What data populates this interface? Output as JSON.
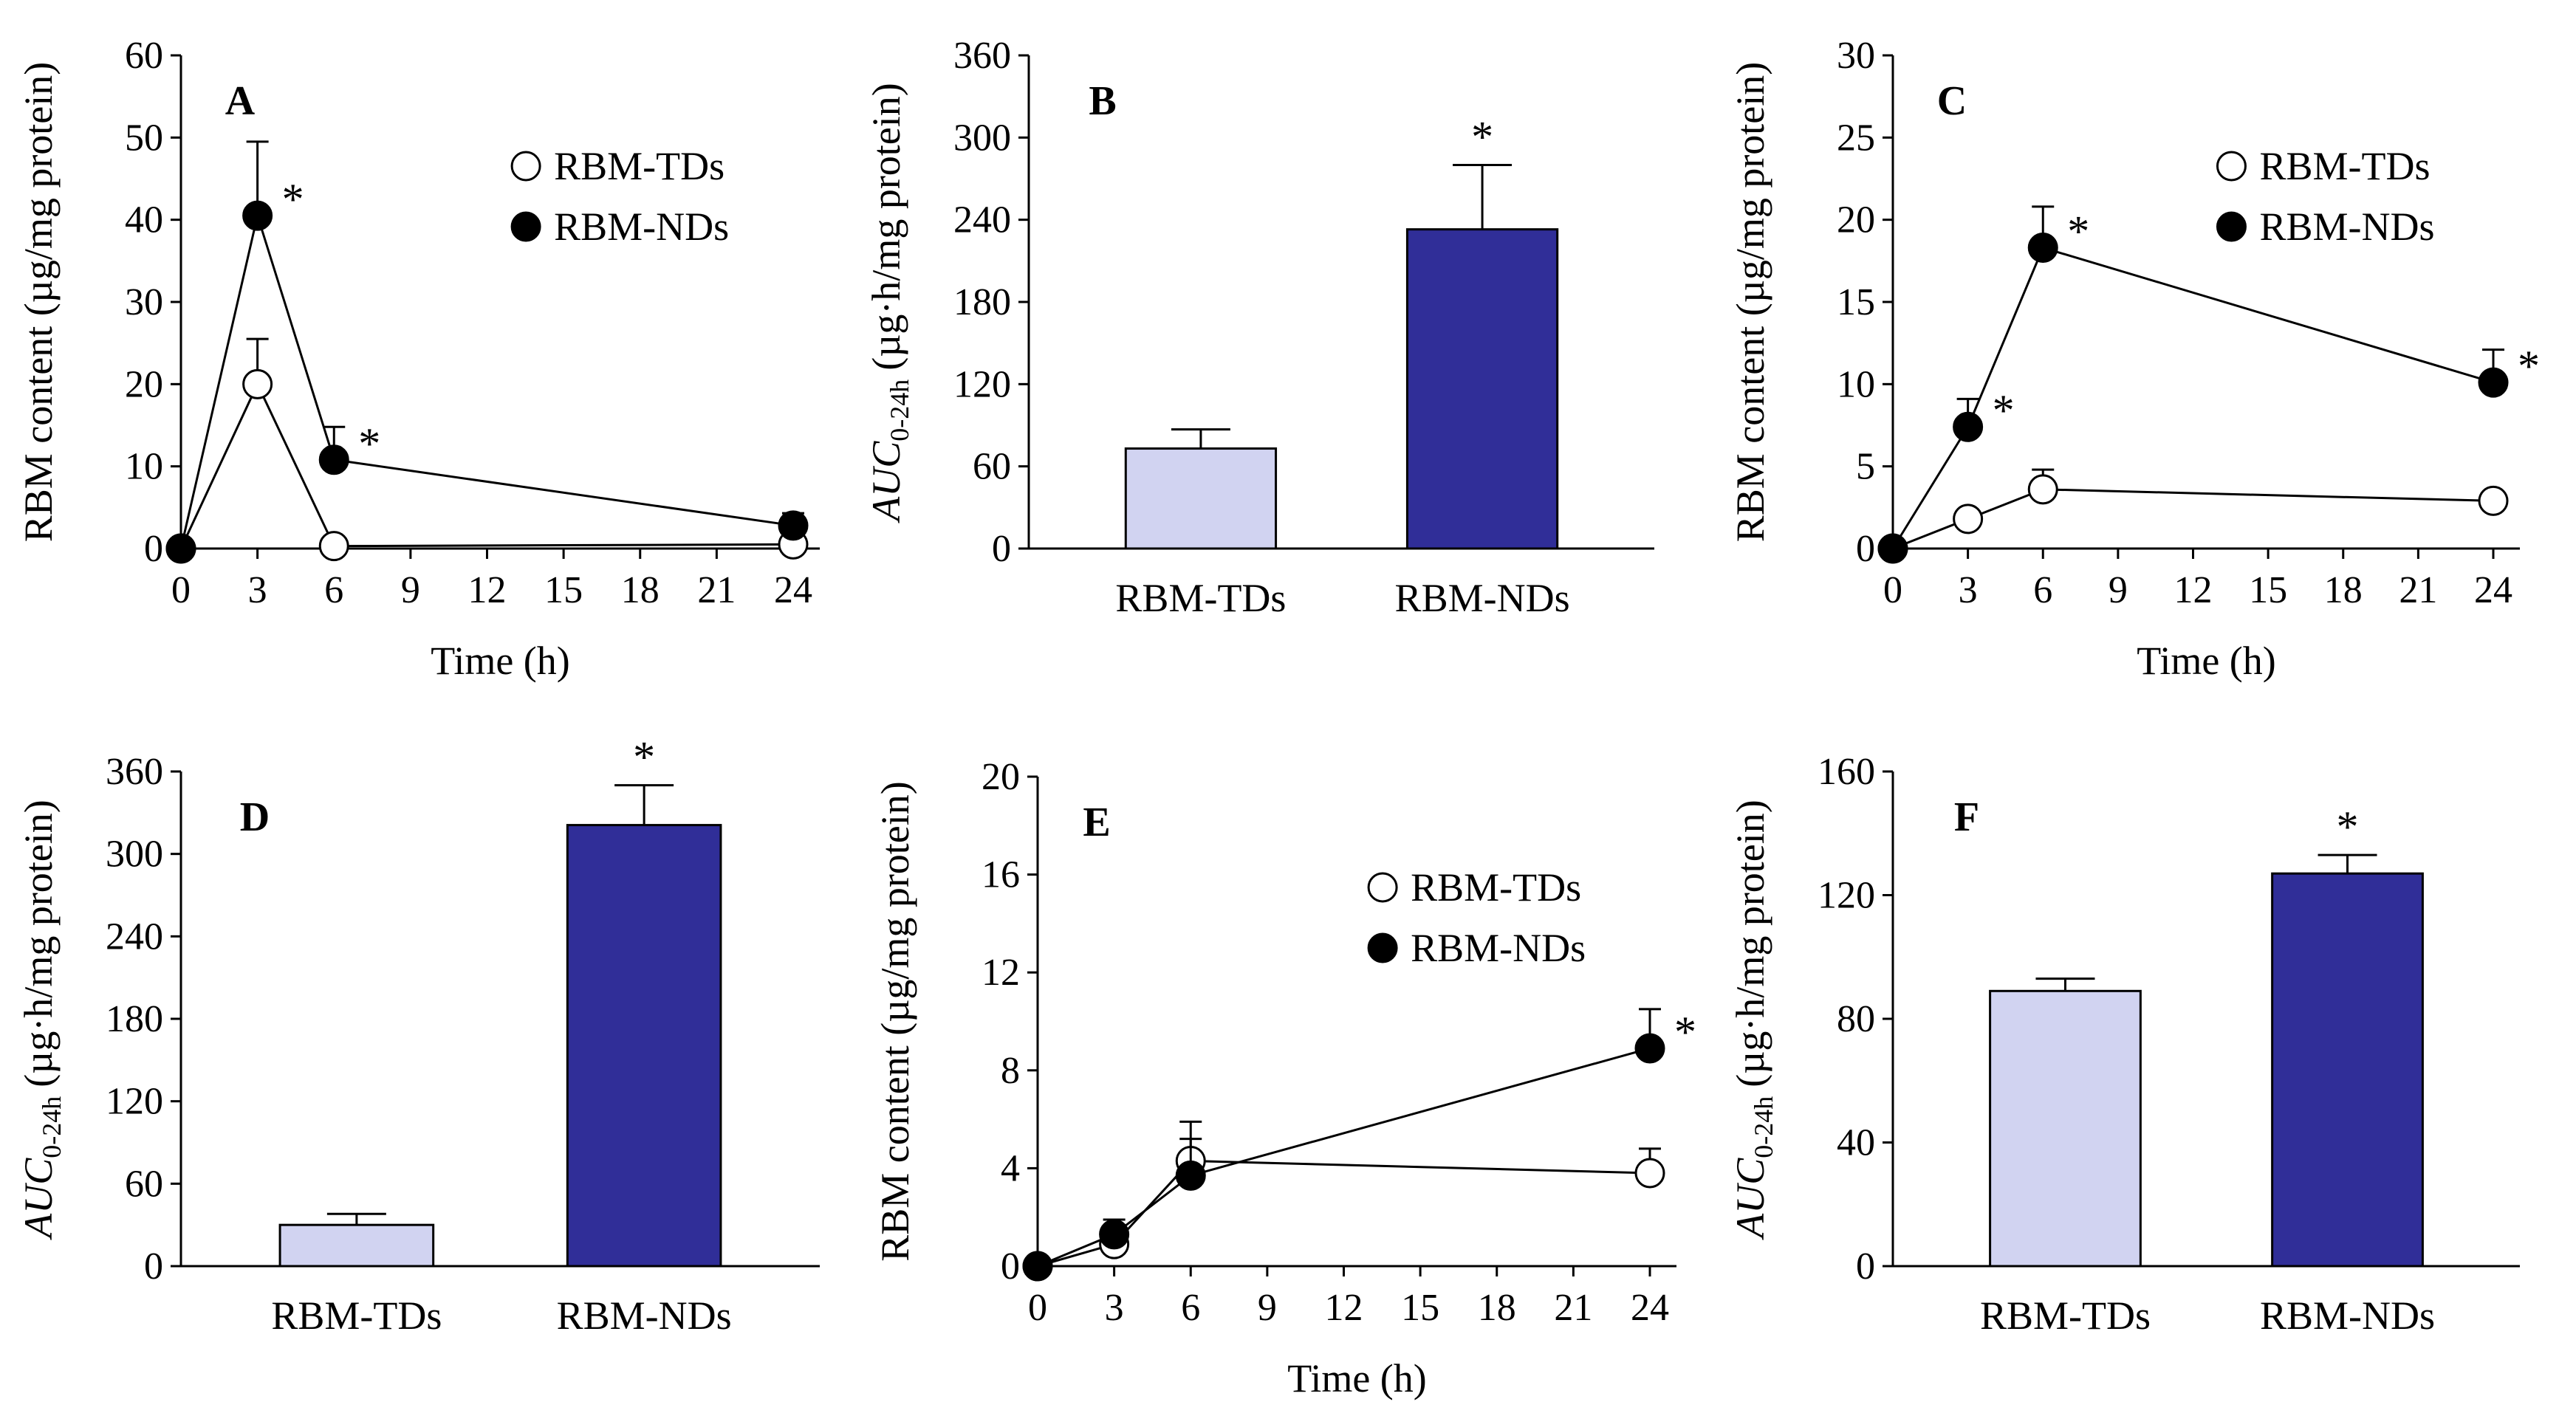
{
  "colors": {
    "td_bar": "#d1d3f1",
    "nd_bar": "#302e98",
    "line": "#000000",
    "open_marker": "#ffffff",
    "filled_marker": "#000000"
  },
  "chart_data": [
    {
      "id": "A",
      "panel_label": "A",
      "type": "line",
      "xlabel": "Time (h)",
      "ylabel": "RBM content (µg/mg protein)",
      "xlim": [
        0,
        24
      ],
      "xticks": [
        0,
        3,
        6,
        9,
        12,
        15,
        18,
        21,
        24
      ],
      "ylim": [
        0,
        60
      ],
      "yticks": [
        0,
        10,
        20,
        30,
        40,
        50,
        60
      ],
      "legend_position": "top-right",
      "series": [
        {
          "name": "RBM-TDs",
          "marker": "open",
          "x": [
            0,
            3,
            6,
            24
          ],
          "y": [
            0,
            20,
            0.3,
            0.5
          ],
          "err": [
            0,
            5.5,
            0,
            0
          ]
        },
        {
          "name": "RBM-NDs",
          "marker": "filled",
          "x": [
            0,
            3,
            6,
            24
          ],
          "y": [
            0,
            40.5,
            10.8,
            2.8
          ],
          "err": [
            0,
            9,
            4,
            1.5
          ]
        }
      ],
      "significance": [
        {
          "series": 1,
          "x": 3,
          "label": "*"
        },
        {
          "series": 1,
          "x": 6,
          "label": "*"
        }
      ]
    },
    {
      "id": "B",
      "panel_label": "B",
      "type": "bar",
      "categories": [
        "RBM-TDs",
        "RBM-NDs"
      ],
      "values": [
        73,
        233
      ],
      "errors": [
        14,
        47
      ],
      "ylabel_main": "AUC",
      "ylabel_sub": "0-24h",
      "ylabel_rest": "(µg·h/mg protein)",
      "ylim": [
        0,
        360
      ],
      "yticks": [
        0,
        60,
        120,
        180,
        240,
        300,
        360
      ],
      "significance": [
        {
          "index": 1,
          "label": "*"
        }
      ]
    },
    {
      "id": "C",
      "panel_label": "C",
      "type": "line",
      "xlabel": "Time (h)",
      "ylabel": "RBM content (µg/mg protein)",
      "xlim": [
        0,
        24
      ],
      "xticks": [
        0,
        3,
        6,
        9,
        12,
        15,
        18,
        21,
        24
      ],
      "ylim": [
        0,
        30
      ],
      "yticks": [
        0,
        5,
        10,
        15,
        20,
        25,
        30
      ],
      "legend_position": "top-right",
      "series": [
        {
          "name": "RBM-TDs",
          "marker": "open",
          "x": [
            0,
            3,
            6,
            24
          ],
          "y": [
            0,
            1.8,
            3.6,
            2.9
          ],
          "err": [
            0,
            0.5,
            1.2,
            0.3
          ]
        },
        {
          "name": "RBM-NDs",
          "marker": "filled",
          "x": [
            0,
            3,
            6,
            24
          ],
          "y": [
            0,
            7.4,
            18.3,
            10.1
          ],
          "err": [
            0,
            1.7,
            2.5,
            2
          ]
        }
      ],
      "significance": [
        {
          "series": 1,
          "x": 3,
          "label": "*"
        },
        {
          "series": 1,
          "x": 6,
          "label": "*"
        },
        {
          "series": 1,
          "x": 24,
          "label": "*"
        }
      ]
    },
    {
      "id": "D",
      "panel_label": "D",
      "type": "bar",
      "categories": [
        "RBM-TDs",
        "RBM-NDs"
      ],
      "values": [
        30,
        321
      ],
      "errors": [
        8,
        29
      ],
      "ylabel_main": "AUC",
      "ylabel_sub": "0-24h",
      "ylabel_rest": "(µg·h/mg protein)",
      "ylim": [
        0,
        360
      ],
      "yticks": [
        0,
        60,
        120,
        180,
        240,
        300,
        360
      ],
      "significance": [
        {
          "index": 1,
          "label": "*"
        }
      ]
    },
    {
      "id": "E",
      "panel_label": "E",
      "type": "line",
      "xlabel": "Time (h)",
      "ylabel": "RBM content (µg/mg protein)",
      "xlim": [
        0,
        24
      ],
      "xticks": [
        0,
        3,
        6,
        9,
        12,
        15,
        18,
        21,
        24
      ],
      "ylim": [
        0,
        20
      ],
      "yticks": [
        0,
        4,
        8,
        12,
        16,
        20
      ],
      "legend_position": "top-right",
      "series": [
        {
          "name": "RBM-TDs",
          "marker": "open",
          "x": [
            0,
            3,
            6,
            24
          ],
          "y": [
            0,
            0.9,
            4.3,
            3.8
          ],
          "err": [
            0,
            0.5,
            1.6,
            1
          ]
        },
        {
          "name": "RBM-NDs",
          "marker": "filled",
          "x": [
            0,
            3,
            6,
            24
          ],
          "y": [
            0,
            1.3,
            3.7,
            8.9
          ],
          "err": [
            0,
            0.6,
            1.5,
            1.6
          ]
        }
      ],
      "significance": [
        {
          "series": 1,
          "x": 24,
          "label": "*"
        }
      ]
    },
    {
      "id": "F",
      "panel_label": "F",
      "type": "bar",
      "categories": [
        "RBM-TDs",
        "RBM-NDs"
      ],
      "values": [
        89,
        127
      ],
      "errors": [
        4,
        6
      ],
      "ylabel_main": "AUC",
      "ylabel_sub": "0-24h",
      "ylabel_rest": "(µg·h/mg protein)",
      "ylim": [
        0,
        160
      ],
      "yticks": [
        0,
        40,
        80,
        120,
        160
      ],
      "significance": [
        {
          "index": 1,
          "label": "*"
        }
      ]
    }
  ]
}
